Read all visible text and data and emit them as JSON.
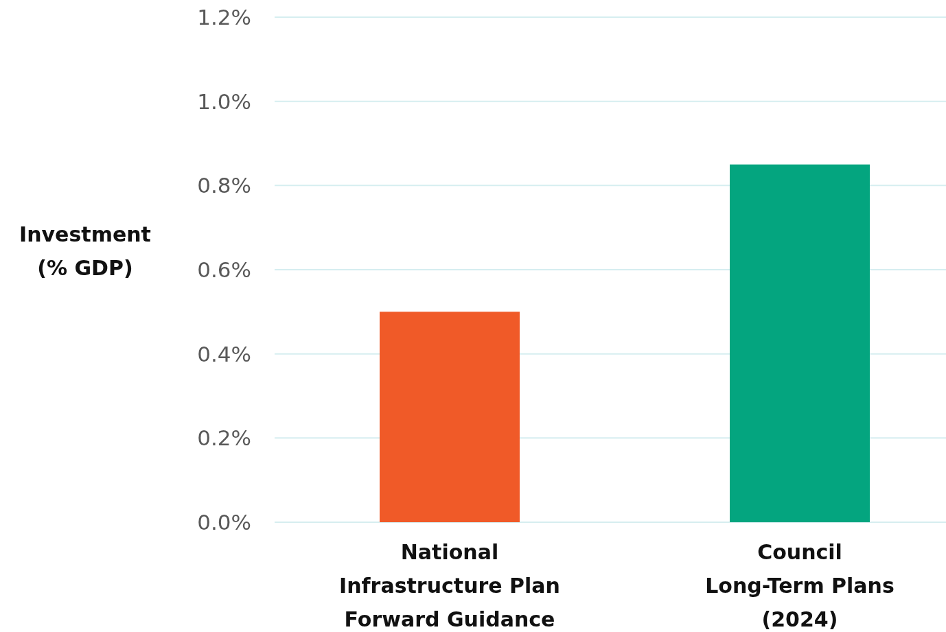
{
  "chart_data": {
    "type": "bar",
    "ylabel": "Investment\n(% GDP)",
    "categories": [
      "National\nInfrastructure Plan\nForward Guidance",
      "Council\nLong-Term Plans\n(2024)"
    ],
    "values": [
      0.5,
      0.85
    ],
    "colors": [
      "#f05a28",
      "#04a57f"
    ],
    "ylim": [
      0,
      1.2
    ],
    "yticks": [
      {
        "value": 0,
        "label": "0.0%"
      },
      {
        "value": 0.2,
        "label": "0.2%"
      },
      {
        "value": 0.4,
        "label": "0.4%"
      },
      {
        "value": 0.6,
        "label": "0.6%"
      },
      {
        "value": 0.8,
        "label": "0.8%"
      },
      {
        "value": 1,
        "label": "1.0%"
      },
      {
        "value": 1.2,
        "label": "1.2%"
      }
    ],
    "grid": "y"
  }
}
